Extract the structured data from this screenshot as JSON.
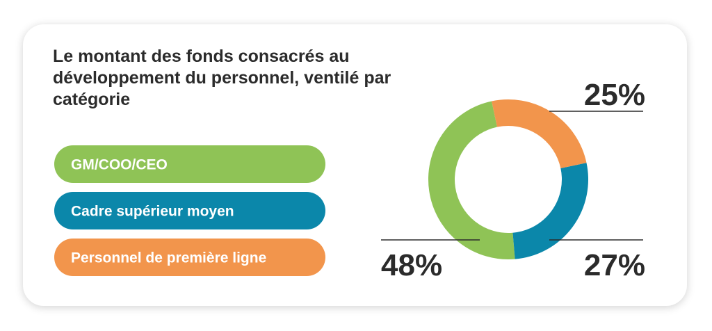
{
  "chart_data": {
    "type": "donut",
    "title": "Le montant des fonds consacrés au développement du personnel, ventilé par catégorie",
    "categories": [
      "GM/COO/CEO",
      "Cadre supérieur moyen",
      "Personnel de première ligne"
    ],
    "values": [
      48,
      27,
      25
    ],
    "value_labels": [
      "48%",
      "27%",
      "25%"
    ],
    "colors": [
      "#8fc356",
      "#0b87aa",
      "#f2954c"
    ]
  }
}
